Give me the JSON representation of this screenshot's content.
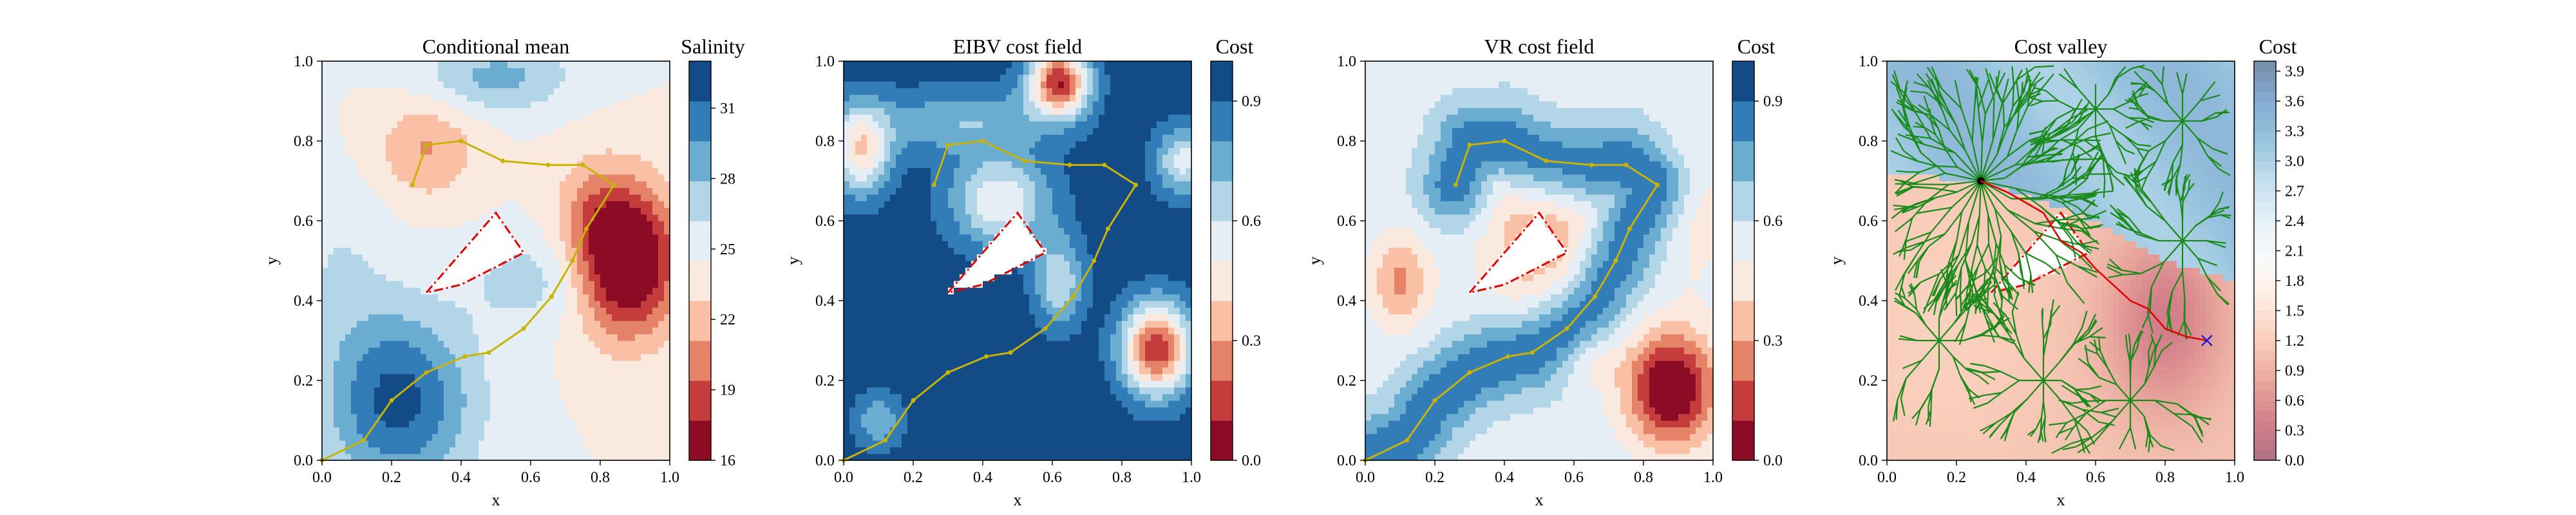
{
  "chart_data": [
    {
      "type": "heatmap",
      "title": "Conditional mean",
      "xlabel": "x",
      "ylabel": "y",
      "xlim": [
        0,
        1
      ],
      "ylim": [
        0,
        1
      ],
      "xticks": [
        "0.0",
        "0.2",
        "0.4",
        "0.6",
        "0.8",
        "1.0"
      ],
      "yticks": [
        "0.0",
        "0.2",
        "0.4",
        "0.6",
        "0.8",
        "1.0"
      ],
      "colorbar": {
        "title": "Salinity",
        "range": [
          16,
          33
        ],
        "ticks": [
          "16",
          "19",
          "22",
          "25",
          "28",
          "31"
        ],
        "tick_values": [
          16,
          19,
          22,
          25,
          28,
          31
        ],
        "colormap": "RdBu",
        "levels": 10
      },
      "field": {
        "base": 24.5,
        "bumps": [
          {
            "cx": 0.88,
            "cy": 0.5,
            "sx": 0.1,
            "sy": 0.13,
            "a": -10.5
          },
          {
            "cx": 0.78,
            "cy": 0.63,
            "sx": 0.08,
            "sy": 0.1,
            "a": -2.5
          },
          {
            "cx": 0.3,
            "cy": 0.78,
            "sx": 0.1,
            "sy": 0.09,
            "a": -3.5
          },
          {
            "cx": 0.22,
            "cy": 0.15,
            "sx": 0.15,
            "sy": 0.16,
            "a": 7.5
          },
          {
            "cx": 0.5,
            "cy": 0.96,
            "sx": 0.15,
            "sy": 0.06,
            "a": 4.0
          },
          {
            "cx": 0.6,
            "cy": 0.45,
            "sx": 0.12,
            "sy": 0.08,
            "a": 2.5
          },
          {
            "cx": 0.05,
            "cy": 0.5,
            "sx": 0.1,
            "sy": 0.15,
            "a": 1.5
          }
        ]
      },
      "path": [
        [
          0.0,
          0.0
        ],
        [
          0.12,
          0.05
        ],
        [
          0.2,
          0.15
        ],
        [
          0.3,
          0.22
        ],
        [
          0.41,
          0.26
        ],
        [
          0.48,
          0.27
        ],
        [
          0.58,
          0.33
        ],
        [
          0.66,
          0.41
        ],
        [
          0.72,
          0.5
        ],
        [
          0.76,
          0.58
        ],
        [
          0.84,
          0.69
        ],
        [
          0.75,
          0.74
        ],
        [
          0.65,
          0.74
        ],
        [
          0.52,
          0.75
        ],
        [
          0.4,
          0.8
        ],
        [
          0.3,
          0.79
        ],
        [
          0.26,
          0.69
        ]
      ],
      "polygon": [
        [
          0.3,
          0.42
        ],
        [
          0.5,
          0.62
        ],
        [
          0.58,
          0.52
        ],
        [
          0.4,
          0.44
        ]
      ]
    },
    {
      "type": "heatmap",
      "title": "EIBV cost field",
      "xlabel": "x",
      "ylabel": "y",
      "xlim": [
        0,
        1
      ],
      "ylim": [
        0,
        1
      ],
      "xticks": [
        "0.0",
        "0.2",
        "0.4",
        "0.6",
        "0.8",
        "1.0"
      ],
      "yticks": [
        "0.0",
        "0.2",
        "0.4",
        "0.6",
        "0.8",
        "1.0"
      ],
      "colorbar": {
        "title": "Cost",
        "range": [
          0,
          1
        ],
        "ticks": [
          "0.0",
          "0.3",
          "0.6",
          "0.9"
        ],
        "tick_values": [
          0,
          0.3,
          0.6,
          0.9
        ],
        "colormap": "RdBu",
        "levels": 10
      },
      "field": {
        "base": 0.96,
        "bumps": [
          {
            "cx": 0.9,
            "cy": 0.28,
            "sx": 0.07,
            "sy": 0.08,
            "a": -0.85
          },
          {
            "cx": 0.62,
            "cy": 0.95,
            "sx": 0.06,
            "sy": 0.06,
            "a": -0.85
          },
          {
            "cx": 0.05,
            "cy": 0.78,
            "sx": 0.06,
            "sy": 0.08,
            "a": -0.55
          },
          {
            "cx": 0.45,
            "cy": 0.65,
            "sx": 0.1,
            "sy": 0.08,
            "a": -0.45
          },
          {
            "cx": 0.62,
            "cy": 0.45,
            "sx": 0.05,
            "sy": 0.08,
            "a": -0.35
          },
          {
            "cx": 0.98,
            "cy": 0.75,
            "sx": 0.06,
            "sy": 0.06,
            "a": -0.4
          },
          {
            "cx": 0.1,
            "cy": 0.1,
            "sx": 0.05,
            "sy": 0.05,
            "a": -0.25
          },
          {
            "cx": 0.35,
            "cy": 0.85,
            "sx": 0.18,
            "sy": 0.06,
            "a": -0.25
          }
        ]
      },
      "path": [
        [
          0.0,
          0.0
        ],
        [
          0.12,
          0.05
        ],
        [
          0.2,
          0.15
        ],
        [
          0.3,
          0.22
        ],
        [
          0.41,
          0.26
        ],
        [
          0.48,
          0.27
        ],
        [
          0.58,
          0.33
        ],
        [
          0.66,
          0.41
        ],
        [
          0.72,
          0.5
        ],
        [
          0.76,
          0.58
        ],
        [
          0.84,
          0.69
        ],
        [
          0.75,
          0.74
        ],
        [
          0.65,
          0.74
        ],
        [
          0.52,
          0.75
        ],
        [
          0.4,
          0.8
        ],
        [
          0.3,
          0.79
        ],
        [
          0.26,
          0.69
        ]
      ],
      "polygon": [
        [
          0.3,
          0.42
        ],
        [
          0.5,
          0.62
        ],
        [
          0.58,
          0.52
        ],
        [
          0.4,
          0.44
        ]
      ]
    },
    {
      "type": "heatmap",
      "title": "VR cost field",
      "xlabel": "x",
      "ylabel": "y",
      "xlim": [
        0,
        1
      ],
      "ylim": [
        0,
        1
      ],
      "xticks": [
        "0.0",
        "0.2",
        "0.4",
        "0.6",
        "0.8",
        "1.0"
      ],
      "yticks": [
        "0.0",
        "0.2",
        "0.4",
        "0.6",
        "0.8",
        "1.0"
      ],
      "colorbar": {
        "title": "Cost",
        "range": [
          0,
          1
        ],
        "ticks": [
          "0.0",
          "0.3",
          "0.6",
          "0.9"
        ],
        "tick_values": [
          0,
          0.3,
          0.6,
          0.9
        ],
        "colormap": "RdBu",
        "levels": 10
      },
      "field": {
        "base": 0.66,
        "bumps": [
          {
            "cx": 0.88,
            "cy": 0.18,
            "sx": 0.09,
            "sy": 0.1,
            "a": -0.62
          },
          {
            "cx": 0.1,
            "cy": 0.45,
            "sx": 0.06,
            "sy": 0.08,
            "a": -0.28
          },
          {
            "cx": 0.5,
            "cy": 0.55,
            "sx": 0.12,
            "sy": 0.12,
            "a": -0.25
          },
          {
            "cx": 0.65,
            "cy": 0.25,
            "sx": 0.06,
            "sy": 0.05,
            "a": -0.12
          },
          {
            "cx": 0.95,
            "cy": 0.65,
            "sx": 0.06,
            "sy": 0.15,
            "a": -0.12
          }
        ],
        "path_gain": 0.33,
        "path_sigma": 0.07
      },
      "path": [
        [
          0.0,
          0.0
        ],
        [
          0.12,
          0.05
        ],
        [
          0.2,
          0.15
        ],
        [
          0.3,
          0.22
        ],
        [
          0.41,
          0.26
        ],
        [
          0.48,
          0.27
        ],
        [
          0.58,
          0.33
        ],
        [
          0.66,
          0.41
        ],
        [
          0.72,
          0.5
        ],
        [
          0.76,
          0.58
        ],
        [
          0.84,
          0.69
        ],
        [
          0.75,
          0.74
        ],
        [
          0.65,
          0.74
        ],
        [
          0.52,
          0.75
        ],
        [
          0.4,
          0.8
        ],
        [
          0.3,
          0.79
        ],
        [
          0.26,
          0.69
        ]
      ],
      "polygon": [
        [
          0.3,
          0.42
        ],
        [
          0.5,
          0.62
        ],
        [
          0.58,
          0.52
        ],
        [
          0.4,
          0.44
        ]
      ]
    },
    {
      "type": "heatmap",
      "title": "Cost valley",
      "xlabel": "x",
      "ylabel": "y",
      "xlim": [
        0,
        1
      ],
      "ylim": [
        0,
        1
      ],
      "xticks": [
        "0.0",
        "0.2",
        "0.4",
        "0.6",
        "0.8",
        "1.0"
      ],
      "yticks": [
        "0.0",
        "0.2",
        "0.4",
        "0.6",
        "0.8",
        "1.0"
      ],
      "colorbar": {
        "title": "Cost",
        "range": [
          0,
          4
        ],
        "ticks": [
          "0.0",
          "0.3",
          "0.6",
          "0.9",
          "1.2",
          "1.5",
          "1.8",
          "2.1",
          "2.4",
          "2.7",
          "3.0",
          "3.3",
          "3.6",
          "3.9"
        ],
        "tick_values": [
          0,
          0.3,
          0.6,
          0.9,
          1.2,
          1.5,
          1.8,
          2.1,
          2.4,
          2.7,
          3.0,
          3.3,
          3.6,
          3.9
        ],
        "colormap": "RdBu (pale)"
      },
      "field": {
        "base": 1.1,
        "bumps": [
          {
            "cx": 0.8,
            "cy": 0.35,
            "sx": 0.12,
            "sy": 0.16,
            "a": -0.75
          },
          {
            "cx": 0.15,
            "cy": 0.35,
            "sx": 0.2,
            "sy": 0.25,
            "a": 0.15
          }
        ],
        "high_region": "above boundary from (0.0, 0.72) through (0.27, 0.70), (0.55, 0.62), (0.80, 0.50) to (1.0, 0.45)",
        "high_value": 3.2
      },
      "tree_root": [
        0.27,
        0.7
      ],
      "goal": [
        0.92,
        0.3
      ],
      "planned_path": [
        [
          0.27,
          0.7
        ],
        [
          0.35,
          0.67
        ],
        [
          0.45,
          0.62
        ],
        [
          0.5,
          0.55
        ],
        [
          0.56,
          0.52
        ],
        [
          0.6,
          0.48
        ],
        [
          0.65,
          0.44
        ],
        [
          0.7,
          0.4
        ],
        [
          0.75,
          0.38
        ],
        [
          0.8,
          0.33
        ],
        [
          0.86,
          0.31
        ],
        [
          0.92,
          0.3
        ]
      ],
      "polygon": [
        [
          0.3,
          0.42
        ],
        [
          0.5,
          0.62
        ],
        [
          0.58,
          0.52
        ],
        [
          0.4,
          0.44
        ]
      ]
    }
  ]
}
